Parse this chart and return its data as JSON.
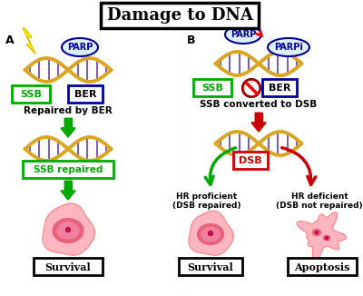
{
  "title": "Damage to DNA",
  "title_fontsize": 13,
  "background_color": "white",
  "label_A": "A",
  "label_B": "B",
  "parp_label": "PARP",
  "parpi_label": "PARPi",
  "ssb_label": "SSB",
  "ber_label": "BER",
  "dsb_label": "DSB",
  "repaired_by_ber": "Repaired by BER",
  "ssb_repaired": "SSB repaired",
  "ssb_converted": "SSB converted to DSB",
  "hr_proficient": "HR proficient\n(DSB repaired)",
  "hr_deficient": "HR deficient\n(DSB not repaired)",
  "survival": "Survival",
  "apoptosis": "Apoptosis",
  "green": "#00AA00",
  "red": "#CC0000",
  "blue": "#000099",
  "yellow": "#FFEE00",
  "pink_cell": "#FFB6C1",
  "dna_gold": "#DAA520",
  "dna_purple": "#6644AA"
}
